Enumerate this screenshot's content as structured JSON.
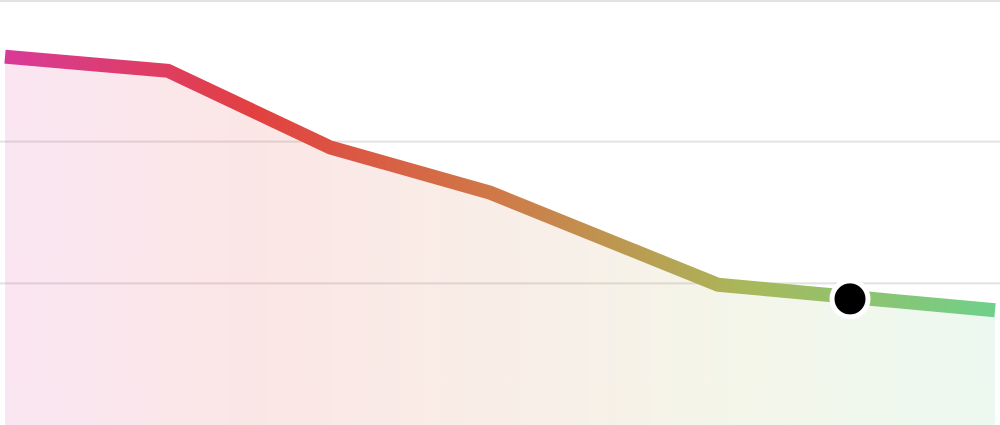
{
  "chart_data": {
    "type": "area",
    "x": [
      5,
      168,
      330,
      490,
      718,
      995
    ],
    "values": [
      2.6,
      2.5,
      1.96,
      1.64,
      0.99,
      0.81
    ],
    "xlim": [
      0,
      1000
    ],
    "ylim": [
      0,
      3
    ],
    "yticks": [
      1,
      2,
      3
    ],
    "grid": true,
    "gradient": [
      "#d83a98",
      "#e24040",
      "#cf7a48",
      "#a9b85a",
      "#6fd08a"
    ],
    "highlight": {
      "x": 850,
      "y": 0.89,
      "color": "#000000"
    }
  }
}
